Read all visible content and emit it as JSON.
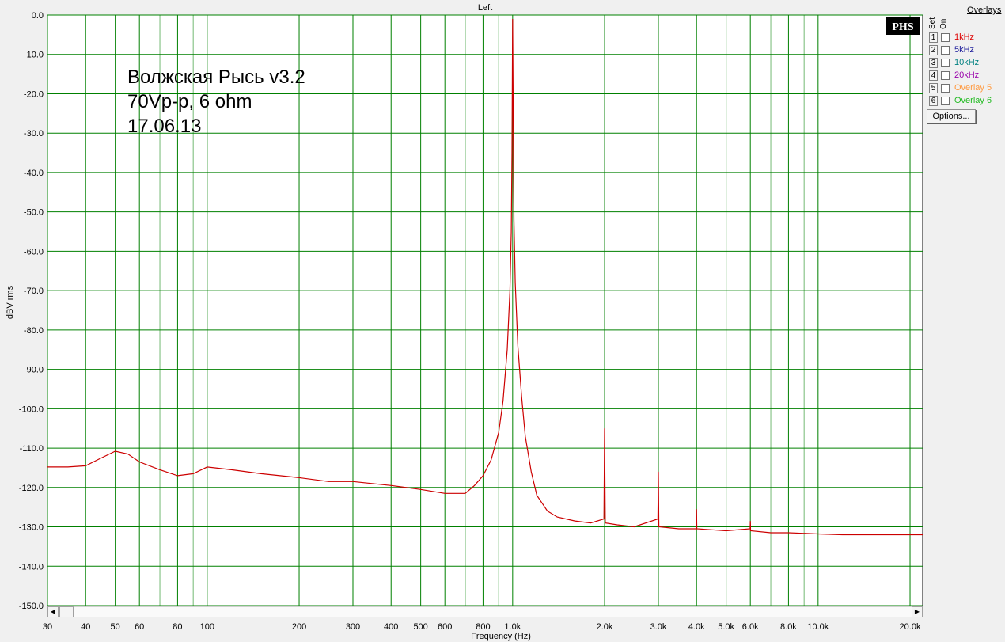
{
  "chart_data": {
    "type": "line",
    "title": "Left",
    "xlabel": "Frequency (Hz)",
    "ylabel": "dBV rms",
    "x_scale": "log",
    "xlim": [
      30,
      22000
    ],
    "ylim": [
      -150,
      0
    ],
    "grid": true,
    "x_ticks": [
      30,
      40,
      50,
      60,
      80,
      100,
      200,
      300,
      400,
      500,
      600,
      800,
      1000,
      2000,
      3000,
      4000,
      5000,
      6000,
      8000,
      10000,
      20000
    ],
    "x_tick_labels": [
      "30",
      "40",
      "50",
      "60",
      "80",
      "100",
      "200",
      "300",
      "400",
      "500",
      "600",
      "800",
      "1.0k",
      "2.0k",
      "3.0k",
      "4.0k",
      "5.0k",
      "6.0k",
      "8.0k",
      "10.0k",
      "20.0k"
    ],
    "y_ticks": [
      0,
      -10,
      -20,
      -30,
      -40,
      -50,
      -60,
      -70,
      -80,
      -90,
      -100,
      -110,
      -120,
      -130,
      -140,
      -150
    ],
    "y_tick_labels": [
      "0.0",
      "-10.0",
      "-20.0",
      "-30.0",
      "-40.0",
      "-50.0",
      "-60.0",
      "-70.0",
      "-80.0",
      "-90.0",
      "-100.0",
      "-110.0",
      "-120.0",
      "-130.0",
      "-140.0",
      "-150.0"
    ],
    "annotations": [
      "Волжская Рысь v3.2",
      "70Vp-p, 6 ohm",
      "17.06.13"
    ],
    "series": [
      {
        "color": "#cc0000",
        "x": [
          30,
          35,
          40,
          45,
          50,
          55,
          60,
          70,
          80,
          90,
          100,
          120,
          150,
          200,
          250,
          300,
          400,
          500,
          600,
          700,
          750,
          800,
          850,
          900,
          930,
          960,
          980,
          990,
          995,
          1000,
          1005,
          1010,
          1020,
          1040,
          1070,
          1100,
          1150,
          1200,
          1300,
          1400,
          1600,
          1800,
          1990,
          2000,
          2010,
          2200,
          2500,
          2990,
          3000,
          3010,
          3500,
          3990,
          4000,
          4010,
          5000,
          5990,
          6000,
          6010,
          7000,
          8000,
          10000,
          12000,
          15000,
          20000,
          22000
        ],
        "y": [
          -114.8,
          -114.8,
          -114.5,
          -112.5,
          -110.8,
          -111.5,
          -113.5,
          -115.5,
          -117,
          -116.5,
          -114.8,
          -115.5,
          -116.5,
          -117.5,
          -118.5,
          -118.5,
          -119.5,
          -120.5,
          -121.5,
          -121.5,
          -119.5,
          -117,
          -113,
          -106,
          -98,
          -85,
          -70,
          -55,
          -35,
          -1,
          -30,
          -52,
          -68,
          -84,
          -97,
          -107,
          -116,
          -122,
          -126,
          -127.5,
          -128.5,
          -129,
          -128,
          -105,
          -129,
          -129.5,
          -130,
          -128,
          -116,
          -130,
          -130.5,
          -130.5,
          -125.5,
          -130.5,
          -131,
          -130.5,
          -128.5,
          -131,
          -131.5,
          -131.5,
          -131.8,
          -132,
          -132,
          -132,
          -132
        ]
      }
    ]
  },
  "overlays": {
    "title": "Overlays",
    "col_set": "Set",
    "col_on": "On",
    "items": [
      {
        "num": "1",
        "label": "1kHz",
        "color": "#dd0000"
      },
      {
        "num": "2",
        "label": "5kHz",
        "color": "#1a1a9a"
      },
      {
        "num": "3",
        "label": "10kHz",
        "color": "#008080"
      },
      {
        "num": "4",
        "label": "20kHz",
        "color": "#9900aa"
      },
      {
        "num": "5",
        "label": "Overlay 5",
        "color": "#ff9a40"
      },
      {
        "num": "6",
        "label": "Overlay 6",
        "color": "#22bb22"
      }
    ],
    "options_label": "Options..."
  },
  "logo": "PHS",
  "colors": {
    "plot_background": "#ffffff",
    "grid": "#008000",
    "trace": "#cc0000"
  }
}
